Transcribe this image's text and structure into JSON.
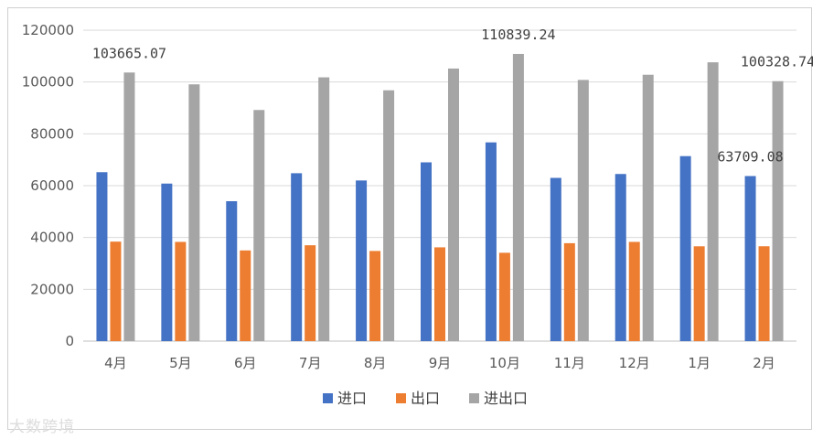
{
  "chart_data": {
    "type": "bar",
    "categories": [
      "4月",
      "5月",
      "6月",
      "7月",
      "8月",
      "9月",
      "10月",
      "11月",
      "12月",
      "1月",
      "2月"
    ],
    "series": [
      {
        "name": "进口",
        "color": "#4472C4",
        "values": [
          65200,
          60800,
          54000,
          64800,
          62000,
          69000,
          76700,
          63000,
          64500,
          71400,
          63709.08
        ]
      },
      {
        "name": "出口",
        "color": "#ED7D31",
        "values": [
          38400,
          38300,
          35000,
          37000,
          34800,
          36200,
          34100,
          37800,
          38300,
          36600,
          36619.66
        ]
      },
      {
        "name": "进出口",
        "color": "#A5A5A5",
        "values": [
          103665.07,
          99100,
          89200,
          101800,
          96800,
          105200,
          110839.24,
          100800,
          102800,
          107600,
          100328.74
        ]
      }
    ],
    "data_labels": [
      {
        "series": 2,
        "index": 0,
        "text": "103665.07"
      },
      {
        "series": 2,
        "index": 6,
        "text": "110839.24"
      },
      {
        "series": 2,
        "index": 10,
        "text": "100328.74"
      },
      {
        "series": 0,
        "index": 10,
        "text": "63709.08"
      }
    ],
    "ylim": [
      0,
      120000
    ],
    "yticks": [
      "0",
      "20000",
      "40000",
      "60000",
      "80000",
      "100000",
      "120000"
    ],
    "grid": true,
    "legend_position": "bottom",
    "title": "",
    "xlabel": "",
    "ylabel": ""
  },
  "watermark": "大数跨境"
}
